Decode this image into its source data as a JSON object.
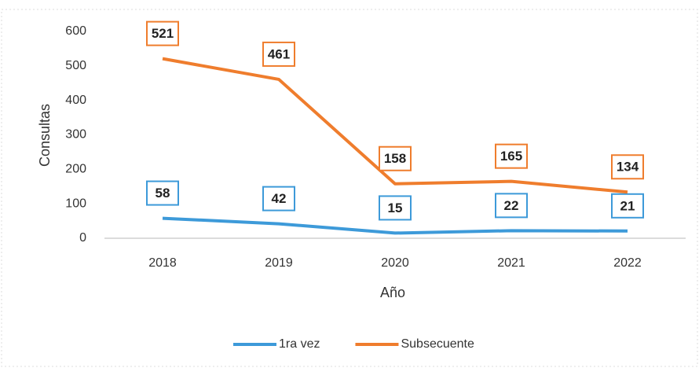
{
  "chart_data": {
    "type": "line",
    "x_label": "Año",
    "y_label": "Consultas",
    "categories": [
      "2018",
      "2019",
      "2020",
      "2021",
      "2022"
    ],
    "series": [
      {
        "name": "1ra vez",
        "color": "#3d9ad9",
        "values": [
          58,
          42,
          15,
          22,
          21
        ]
      },
      {
        "name": "Subsecuente",
        "color": "#ef7d2d",
        "values": [
          521,
          461,
          158,
          165,
          134
        ]
      }
    ],
    "ylim": [
      0,
      600
    ],
    "yticks": [
      0,
      100,
      200,
      300,
      400,
      500,
      600
    ],
    "grid": false,
    "legend": "bottom"
  }
}
